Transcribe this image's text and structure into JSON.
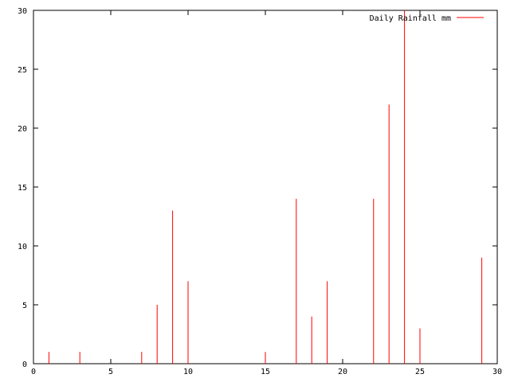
{
  "chart_data": {
    "type": "bar",
    "style": "impulses",
    "x": [
      1,
      3,
      7,
      8,
      9,
      10,
      15,
      17,
      18,
      19,
      22,
      23,
      24,
      25,
      29
    ],
    "series": [
      {
        "name": "Daily Rainfall mm",
        "color": "#ff0000",
        "values": [
          1,
          1,
          1,
          5,
          13,
          7,
          1,
          14,
          4,
          7,
          14,
          22,
          30,
          3,
          9
        ]
      }
    ],
    "xlim": [
      0,
      30
    ],
    "ylim": [
      0,
      30
    ],
    "xticks": [
      "0",
      "5",
      "10",
      "15",
      "20",
      "25",
      "30"
    ],
    "yticks": [
      "0",
      "5",
      "10",
      "15",
      "20",
      "25",
      "30"
    ],
    "grid": false,
    "legend_position": "top-right"
  }
}
